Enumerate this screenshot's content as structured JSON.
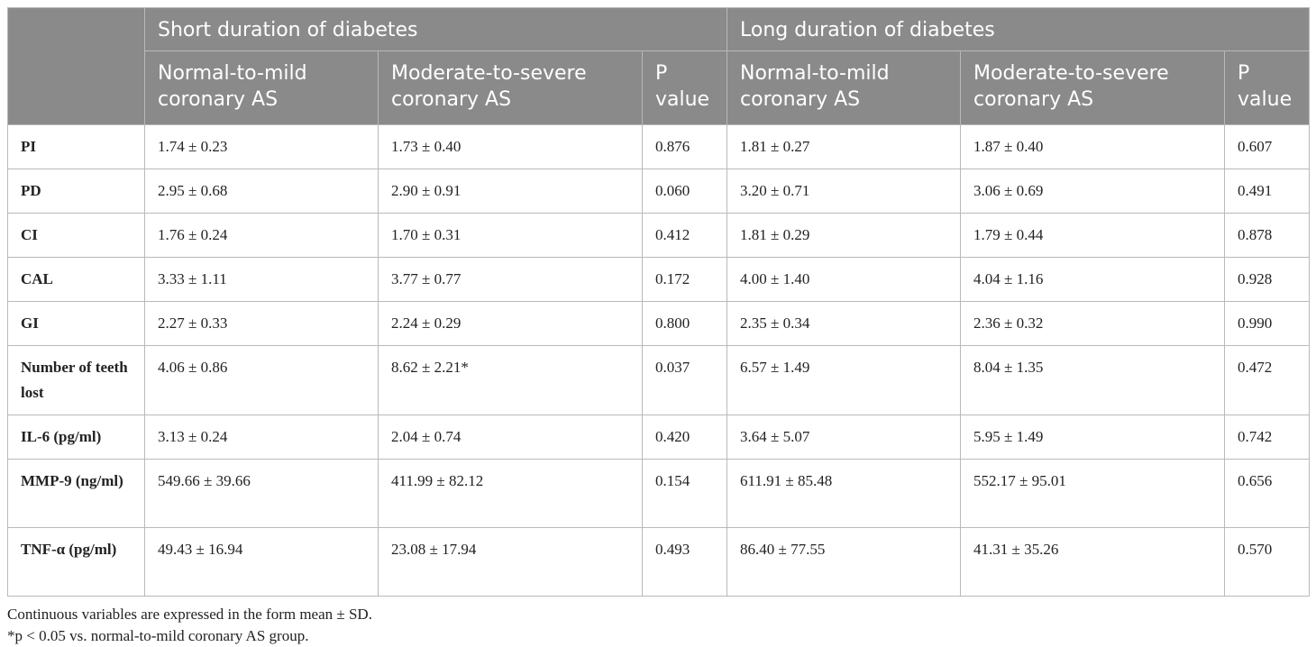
{
  "header": {
    "group_short": "Short duration of diabetes",
    "group_long": "Long duration of diabetes",
    "sub": [
      "Normal-to-mild coronary AS",
      "Moderate-to-severe coronary AS",
      "P value",
      "Normal-to-mild coronary AS",
      "Moderate-to-severe coronary AS",
      "P value"
    ]
  },
  "rows": [
    {
      "label": "PI",
      "cells": [
        "1.74 ± 0.23",
        "1.73 ± 0.40",
        "0.876",
        "1.81 ± 0.27",
        "1.87 ± 0.40",
        "0.607"
      ]
    },
    {
      "label": "PD",
      "cells": [
        "2.95 ± 0.68",
        "2.90 ± 0.91",
        "0.060",
        "3.20 ± 0.71",
        "3.06 ± 0.69",
        "0.491"
      ]
    },
    {
      "label": "CI",
      "cells": [
        "1.76 ± 0.24",
        "1.70 ± 0.31",
        "0.412",
        "1.81 ± 0.29",
        "1.79 ± 0.44",
        "0.878"
      ]
    },
    {
      "label": "CAL",
      "cells": [
        "3.33 ± 1.11",
        "3.77 ± 0.77",
        "0.172",
        "4.00 ± 1.40",
        "4.04 ± 1.16",
        "0.928"
      ]
    },
    {
      "label": "GI",
      "cells": [
        "2.27 ± 0.33",
        "2.24 ± 0.29",
        "0.800",
        "2.35 ± 0.34",
        "2.36 ± 0.32",
        "0.990"
      ]
    },
    {
      "label": "Number of teeth lost",
      "cells": [
        "4.06 ± 0.86",
        "8.62 ± 2.21*",
        "0.037",
        "6.57 ± 1.49",
        "8.04 ± 1.35",
        "0.472"
      ]
    },
    {
      "label": "IL-6 (pg/ml)",
      "cells": [
        "3.13 ± 0.24",
        "2.04 ± 0.74",
        "0.420",
        "3.64 ± 5.07",
        "5.95 ± 1.49",
        "0.742"
      ]
    },
    {
      "label": "MMP-9 (ng/ml)",
      "cells": [
        "549.66 ± 39.66",
        "411.99 ± 82.12",
        "0.154",
        "611.91 ± 85.48",
        "552.17 ± 95.01",
        "0.656"
      ]
    },
    {
      "label": "TNF-α (pg/ml)",
      "cells": [
        "49.43 ± 16.94",
        "23.08 ± 17.94",
        "0.493",
        "86.40 ± 77.55",
        "41.31 ± 35.26",
        "0.570"
      ]
    }
  ],
  "footnotes": {
    "note1": "Continuous variables are expressed in the form mean ± SD.",
    "note2": "*p < 0.05 vs. normal-to-mild coronary AS group."
  }
}
